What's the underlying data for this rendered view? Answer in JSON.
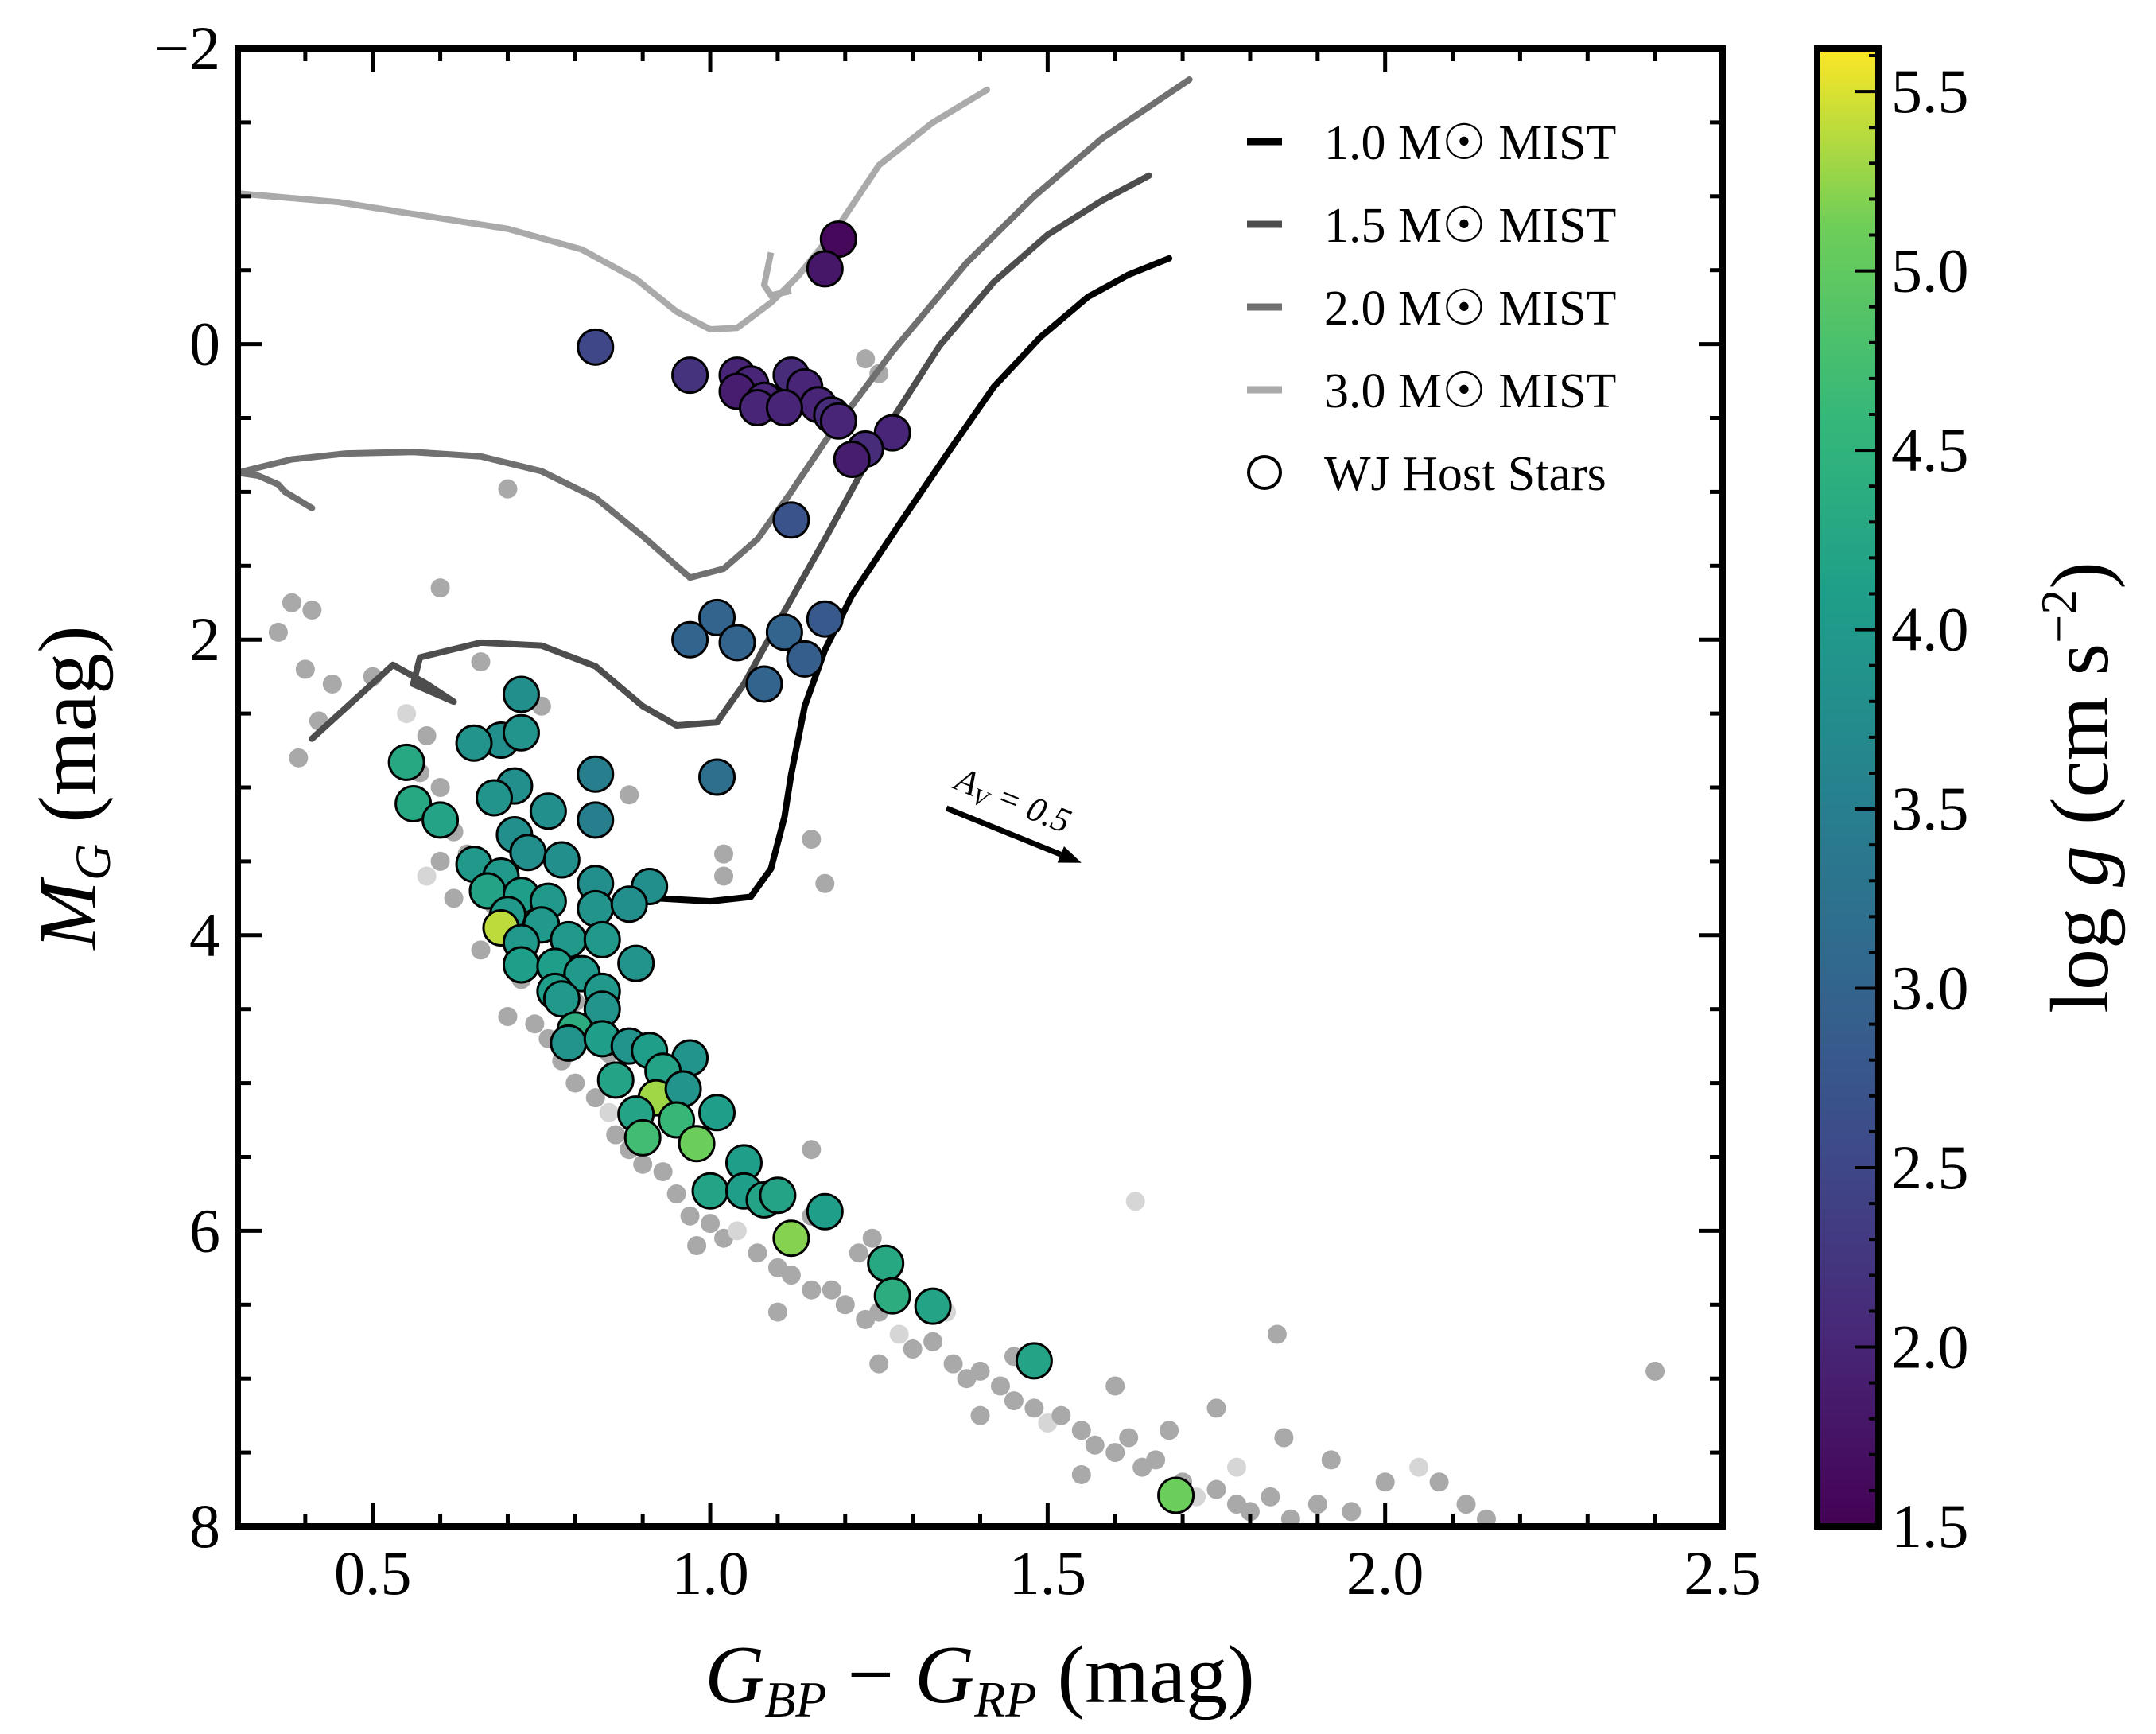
{
  "chart_data": {
    "type": "scatter",
    "title": "",
    "xlabel": "G_BP − G_RP (mag)",
    "xlabel_parts": {
      "g1": "G",
      "s1": "BP",
      "minus": " − ",
      "g2": "G",
      "s2": "RP",
      "unit": " (mag)"
    },
    "ylabel_parts": {
      "m": "M",
      "s": "G",
      "unit": " (mag)"
    },
    "xlim": [
      0.3,
      2.5
    ],
    "ylim": [
      8,
      -2
    ],
    "xticks": [
      "0.5",
      "1.0",
      "1.5",
      "2.0",
      "2.5"
    ],
    "yticks": [
      "−2",
      "0",
      "2",
      "4",
      "6",
      "8"
    ],
    "colorbar": {
      "label_parts": {
        "pre": "log ",
        "g": "g",
        "mid": " (cm s",
        "sup": "−2",
        "post": ")"
      },
      "range": [
        1.5,
        5.62
      ],
      "ticks": [
        "1.5",
        "2.0",
        "2.5",
        "3.0",
        "3.5",
        "4.0",
        "4.5",
        "5.0",
        "5.5"
      ]
    },
    "legend": {
      "placement": "top-right",
      "entries": [
        {
          "label": "1.0 M☉ MIST",
          "color": "#000000"
        },
        {
          "label": "1.5 M☉ MIST",
          "color": "#4d4d4d"
        },
        {
          "label": "2.0 M☉ MIST",
          "color": "#707070"
        },
        {
          "label": "3.0 M☉ MIST",
          "color": "#aaaaaa"
        },
        {
          "label": "WJ Host Stars",
          "marker": "circle"
        }
      ]
    },
    "annotation": {
      "text_parts": {
        "a": "A",
        "sub": "V",
        "rest": " = 0.5"
      },
      "arrow_from": [
        1.35,
        3.14
      ],
      "arrow_to": [
        1.55,
        3.51
      ]
    },
    "isochrones": [
      {
        "name": "1.0 M☉ MIST",
        "color": "#000000",
        "points": [
          [
            0.92,
            3.75
          ],
          [
            1.0,
            3.77
          ],
          [
            1.06,
            3.74
          ],
          [
            1.09,
            3.55
          ],
          [
            1.11,
            3.2
          ],
          [
            1.12,
            2.91
          ],
          [
            1.14,
            2.45
          ],
          [
            1.17,
            2.07
          ],
          [
            1.21,
            1.7
          ],
          [
            1.28,
            1.22
          ],
          [
            1.35,
            0.75
          ],
          [
            1.42,
            0.29
          ],
          [
            1.49,
            -0.05
          ],
          [
            1.56,
            -0.32
          ],
          [
            1.62,
            -0.47
          ],
          [
            1.68,
            -0.58
          ]
        ]
      },
      {
        "name": "1.5 M☉ MIST",
        "color": "#4d4d4d",
        "points": [
          [
            0.41,
            2.67
          ],
          [
            0.47,
            2.42
          ],
          [
            0.53,
            2.17
          ],
          [
            0.58,
            2.3
          ],
          [
            0.62,
            2.42
          ],
          [
            0.56,
            2.3
          ],
          [
            0.57,
            2.12
          ],
          [
            0.66,
            2.02
          ],
          [
            0.75,
            2.04
          ],
          [
            0.83,
            2.18
          ],
          [
            0.9,
            2.45
          ],
          [
            0.95,
            2.58
          ],
          [
            1.01,
            2.56
          ],
          [
            1.05,
            2.3
          ],
          [
            1.09,
            1.97
          ],
          [
            1.17,
            1.32
          ],
          [
            1.25,
            0.65
          ],
          [
            1.34,
            0.01
          ],
          [
            1.42,
            -0.42
          ],
          [
            1.5,
            -0.74
          ],
          [
            1.58,
            -0.97
          ],
          [
            1.65,
            -1.14
          ]
        ]
      },
      {
        "name": "2.0 M☉ MIST",
        "color": "#707070",
        "points": [
          [
            0.41,
            1.11
          ],
          [
            0.37,
            1.0
          ],
          [
            0.36,
            0.95
          ],
          [
            0.33,
            0.89
          ],
          [
            0.3,
            0.87
          ],
          [
            0.38,
            0.78
          ],
          [
            0.46,
            0.74
          ],
          [
            0.56,
            0.73
          ],
          [
            0.66,
            0.76
          ],
          [
            0.75,
            0.86
          ],
          [
            0.83,
            1.04
          ],
          [
            0.9,
            1.3
          ],
          [
            0.97,
            1.58
          ],
          [
            1.02,
            1.52
          ],
          [
            1.07,
            1.32
          ],
          [
            1.12,
            1.0
          ],
          [
            1.17,
            0.66
          ],
          [
            1.27,
            0.05
          ],
          [
            1.38,
            -0.55
          ],
          [
            1.48,
            -1.0
          ],
          [
            1.58,
            -1.39
          ],
          [
            1.71,
            -1.79
          ]
        ]
      },
      {
        "name": "3.0 M☉ MIST",
        "color": "#aaaaaa",
        "points": [
          [
            0.3,
            -1.02
          ],
          [
            0.45,
            -0.96
          ],
          [
            0.56,
            -0.88
          ],
          [
            0.7,
            -0.78
          ],
          [
            0.81,
            -0.64
          ],
          [
            0.89,
            -0.44
          ],
          [
            0.95,
            -0.22
          ],
          [
            1.0,
            -0.1
          ],
          [
            1.04,
            -0.11
          ],
          [
            1.09,
            -0.28
          ],
          [
            1.13,
            -0.46
          ],
          [
            1.19,
            -0.8
          ],
          [
            1.25,
            -1.21
          ],
          [
            1.33,
            -1.5
          ],
          [
            1.41,
            -1.72
          ]
        ]
      }
    ],
    "hook_3msun": [
      [
        1.09,
        -0.62
      ],
      [
        1.08,
        -0.4
      ],
      [
        1.09,
        -0.33
      ],
      [
        1.12,
        -0.36
      ]
    ],
    "host_stars": [
      [
        1.19,
        -0.71,
        1.6
      ],
      [
        1.17,
        -0.51,
        1.8
      ],
      [
        0.83,
        0.02,
        2.5
      ],
      [
        0.97,
        0.21,
        2.2
      ],
      [
        1.04,
        0.21,
        2.0
      ],
      [
        1.06,
        0.27,
        2.0
      ],
      [
        1.04,
        0.32,
        1.9
      ],
      [
        1.08,
        0.38,
        2.0
      ],
      [
        1.07,
        0.43,
        2.0
      ],
      [
        1.12,
        0.21,
        2.1
      ],
      [
        1.14,
        0.29,
        2.0
      ],
      [
        1.16,
        0.41,
        2.0
      ],
      [
        1.11,
        0.43,
        2.0
      ],
      [
        1.18,
        0.48,
        2.1
      ],
      [
        1.19,
        0.52,
        2.0
      ],
      [
        1.27,
        0.6,
        2.0
      ],
      [
        1.23,
        0.71,
        2.1
      ],
      [
        1.21,
        0.78,
        1.9
      ],
      [
        1.12,
        1.19,
        2.7
      ],
      [
        1.01,
        1.85,
        3.0
      ],
      [
        0.97,
        2.0,
        3.0
      ],
      [
        1.04,
        2.02,
        3.0
      ],
      [
        1.11,
        1.95,
        3.0
      ],
      [
        1.17,
        1.86,
        2.8
      ],
      [
        1.14,
        2.13,
        2.9
      ],
      [
        1.08,
        2.3,
        3.0
      ],
      [
        1.01,
        2.93,
        3.2
      ],
      [
        0.83,
        2.91,
        3.5
      ],
      [
        0.83,
        3.22,
        3.5
      ],
      [
        0.72,
        2.37,
        3.8
      ],
      [
        0.69,
        2.68,
        3.8
      ],
      [
        0.65,
        2.7,
        3.9
      ],
      [
        0.55,
        2.83,
        4.3
      ],
      [
        0.56,
        3.11,
        4.3
      ],
      [
        0.6,
        3.22,
        4.2
      ],
      [
        0.72,
        2.63,
        3.9
      ],
      [
        0.71,
        2.99,
        3.8
      ],
      [
        0.68,
        3.07,
        3.9
      ],
      [
        0.76,
        3.16,
        3.8
      ],
      [
        0.71,
        3.32,
        3.8
      ],
      [
        0.73,
        3.44,
        3.8
      ],
      [
        0.78,
        3.49,
        3.8
      ],
      [
        0.65,
        3.52,
        4.0
      ],
      [
        0.69,
        3.6,
        4.0
      ],
      [
        0.83,
        3.65,
        3.8
      ],
      [
        0.91,
        3.67,
        3.8
      ],
      [
        0.67,
        3.7,
        4.2
      ],
      [
        0.72,
        3.73,
        4.1
      ],
      [
        0.76,
        3.77,
        4.0
      ],
      [
        0.83,
        3.82,
        3.9
      ],
      [
        0.88,
        3.79,
        3.8
      ],
      [
        0.7,
        3.86,
        4.0
      ],
      [
        0.75,
        3.93,
        4.0
      ],
      [
        0.69,
        3.95,
        5.4
      ],
      [
        0.79,
        4.03,
        4.0
      ],
      [
        0.72,
        4.05,
        4.0
      ],
      [
        0.84,
        4.03,
        4.0
      ],
      [
        0.72,
        4.2,
        4.1
      ],
      [
        0.77,
        4.21,
        4.1
      ],
      [
        0.89,
        4.19,
        3.9
      ],
      [
        0.81,
        4.26,
        4.0
      ],
      [
        0.84,
        4.38,
        4.0
      ],
      [
        0.77,
        4.38,
        4.1
      ],
      [
        0.84,
        4.5,
        3.9
      ],
      [
        0.78,
        4.43,
        4.0
      ],
      [
        0.8,
        4.64,
        4.4
      ],
      [
        0.79,
        4.73,
        3.9
      ],
      [
        0.84,
        4.7,
        4.1
      ],
      [
        0.88,
        4.75,
        3.9
      ],
      [
        0.91,
        4.78,
        4.1
      ],
      [
        0.97,
        4.83,
        3.9
      ],
      [
        0.93,
        4.92,
        4.2
      ],
      [
        0.86,
        4.98,
        4.2
      ],
      [
        0.92,
        5.1,
        5.3
      ],
      [
        0.96,
        5.04,
        3.9
      ],
      [
        1.01,
        5.2,
        4.1
      ],
      [
        0.89,
        5.21,
        4.2
      ],
      [
        0.95,
        5.25,
        4.6
      ],
      [
        0.9,
        5.37,
        4.7
      ],
      [
        0.98,
        5.41,
        5.1
      ],
      [
        1.05,
        5.54,
        4.1
      ],
      [
        1.0,
        5.73,
        4.2
      ],
      [
        1.05,
        5.73,
        4.1
      ],
      [
        1.08,
        5.79,
        4.2
      ],
      [
        1.1,
        5.76,
        4.2
      ],
      [
        1.17,
        5.87,
        4.1
      ],
      [
        1.12,
        6.05,
        5.2
      ],
      [
        1.26,
        6.22,
        4.3
      ],
      [
        1.27,
        6.44,
        4.4
      ],
      [
        1.33,
        6.51,
        4.2
      ],
      [
        1.48,
        6.88,
        4.2
      ],
      [
        1.69,
        7.79,
        5.1
      ]
    ],
    "field_stars": [
      [
        0.38,
        1.75
      ],
      [
        0.41,
        1.8
      ],
      [
        0.36,
        1.95
      ],
      [
        0.4,
        2.2
      ],
      [
        0.44,
        2.3
      ],
      [
        0.39,
        2.8
      ],
      [
        0.42,
        2.55
      ],
      [
        0.5,
        2.25
      ],
      [
        0.55,
        2.5
      ],
      [
        0.58,
        2.65
      ],
      [
        0.57,
        2.9
      ],
      [
        0.6,
        3.0
      ],
      [
        0.62,
        3.3
      ],
      [
        0.64,
        3.45
      ],
      [
        0.6,
        3.5
      ],
      [
        0.66,
        3.6
      ],
      [
        0.68,
        3.8
      ],
      [
        0.7,
        4.0
      ],
      [
        0.66,
        4.1
      ],
      [
        0.72,
        4.3
      ],
      [
        0.7,
        4.55
      ],
      [
        0.74,
        4.6
      ],
      [
        0.76,
        4.7
      ],
      [
        0.78,
        4.85
      ],
      [
        0.8,
        5.0
      ],
      [
        0.83,
        5.1
      ],
      [
        0.85,
        5.2
      ],
      [
        0.86,
        5.35
      ],
      [
        0.88,
        5.45
      ],
      [
        0.9,
        5.55
      ],
      [
        0.93,
        5.6
      ],
      [
        0.95,
        5.75
      ],
      [
        0.97,
        5.9
      ],
      [
        1.0,
        5.95
      ],
      [
        1.02,
        6.05
      ],
      [
        1.04,
        6.0
      ],
      [
        1.07,
        6.15
      ],
      [
        1.1,
        6.25
      ],
      [
        1.12,
        6.3
      ],
      [
        1.15,
        6.4
      ],
      [
        1.18,
        6.4
      ],
      [
        1.2,
        6.5
      ],
      [
        1.23,
        6.6
      ],
      [
        1.25,
        6.55
      ],
      [
        1.28,
        6.7
      ],
      [
        1.3,
        6.8
      ],
      [
        1.33,
        6.75
      ],
      [
        1.36,
        6.9
      ],
      [
        1.38,
        7.0
      ],
      [
        1.4,
        6.95
      ],
      [
        1.43,
        7.05
      ],
      [
        1.45,
        7.15
      ],
      [
        1.48,
        7.2
      ],
      [
        1.5,
        7.3
      ],
      [
        1.52,
        7.25
      ],
      [
        1.55,
        7.35
      ],
      [
        1.57,
        7.45
      ],
      [
        1.6,
        7.5
      ],
      [
        1.62,
        7.4
      ],
      [
        1.64,
        7.6
      ],
      [
        1.66,
        7.55
      ],
      [
        1.7,
        7.7
      ],
      [
        1.72,
        7.8
      ],
      [
        1.75,
        7.75
      ],
      [
        1.78,
        7.85
      ],
      [
        1.8,
        7.9
      ],
      [
        1.83,
        7.8
      ],
      [
        1.86,
        7.95
      ],
      [
        1.9,
        7.85
      ],
      [
        1.95,
        7.9
      ],
      [
        2.0,
        7.7
      ],
      [
        2.05,
        7.6
      ],
      [
        2.08,
        7.7
      ],
      [
        2.12,
        7.85
      ],
      [
        2.15,
        7.95
      ],
      [
        1.92,
        7.55
      ],
      [
        1.85,
        7.4
      ],
      [
        1.75,
        7.2
      ],
      [
        1.6,
        7.05
      ],
      [
        1.45,
        6.85
      ],
      [
        1.35,
        6.55
      ],
      [
        1.22,
        6.15
      ],
      [
        1.15,
        5.9
      ],
      [
        1.05,
        5.6
      ],
      [
        0.95,
        5.3
      ],
      [
        0.85,
        4.8
      ],
      [
        0.8,
        4.45
      ],
      [
        0.75,
        4.2
      ],
      [
        0.62,
        3.75
      ],
      [
        0.58,
        3.6
      ],
      [
        0.98,
        6.1
      ],
      [
        1.1,
        6.55
      ],
      [
        1.25,
        6.9
      ],
      [
        1.4,
        7.25
      ],
      [
        1.55,
        7.65
      ],
      [
        1.15,
        5.45
      ],
      [
        1.24,
        6.05
      ],
      [
        1.68,
        7.35
      ],
      [
        1.78,
        7.6
      ],
      [
        0.66,
        2.15
      ],
      [
        0.75,
        2.45
      ],
      [
        0.88,
        3.05
      ],
      [
        1.15,
        3.35
      ],
      [
        1.02,
        3.6
      ],
      [
        1.17,
        3.65
      ],
      [
        0.7,
        0.98
      ],
      [
        0.6,
        1.65
      ],
      [
        1.63,
        5.8
      ],
      [
        1.84,
        6.7
      ],
      [
        2.4,
        6.95
      ],
      [
        1.02,
        3.45
      ],
      [
        1.25,
        0.2
      ],
      [
        1.23,
        0.1
      ]
    ]
  }
}
